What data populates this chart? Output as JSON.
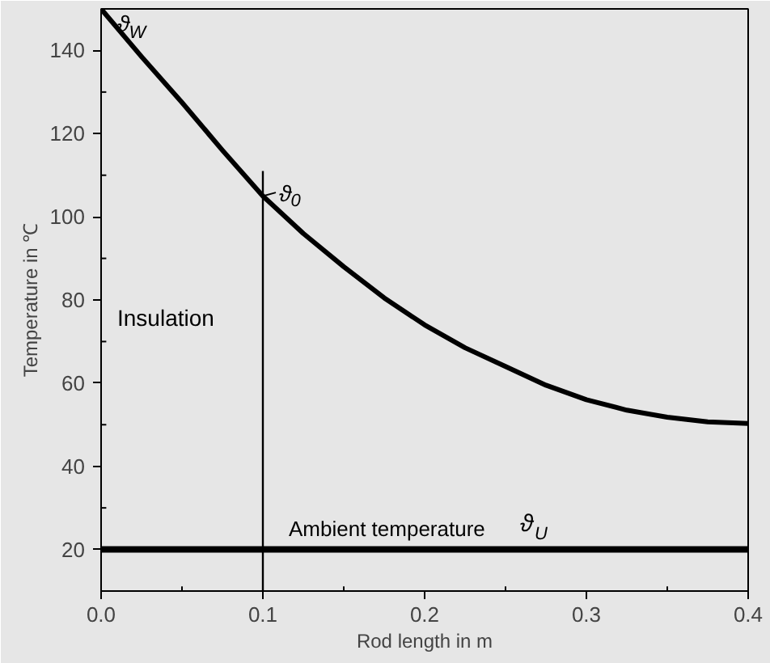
{
  "chart_data": {
    "type": "line",
    "xlabel": "Rod length in m",
    "ylabel": "Temperature in ℃",
    "xlim": [
      0,
      0.4
    ],
    "ylim": [
      10,
      150
    ],
    "xticks": [
      {
        "value": 0,
        "label": "0.0"
      },
      0.1,
      0.2,
      0.3,
      0.4
    ],
    "yticks": [
      20,
      40,
      60,
      80,
      100,
      120,
      140
    ],
    "grid": false,
    "marker": "none",
    "line_style": "solid",
    "series": [
      {
        "color": "#000000",
        "x": [
          0,
          0.025,
          0.05,
          0.075,
          0.1,
          0.125,
          0.15,
          0.175,
          0.2,
          0.225,
          0.25,
          0.275,
          0.3,
          0.325,
          0.35,
          0.375,
          0.4
        ],
        "values": [
          150,
          138.5,
          127.5,
          116,
          105,
          96,
          88,
          80.5,
          74,
          68.5,
          64,
          59.5,
          56,
          53.5,
          51.8,
          50.7,
          50.3
        ]
      },
      {
        "color": "#000000",
        "x": [
          0.1,
          0.1
        ],
        "values": [
          10,
          111
        ]
      }
    ],
    "ref_lines": [
      {
        "axis": "y",
        "value": 20,
        "label": "Ambient temperature   ϑ$_{U}$",
        "color": "#000000"
      }
    ],
    "annotations": [
      {
        "text": "ϑ$_{W}$",
        "x": 0,
        "y": 150
      },
      {
        "text": "ϑ$_{0}$",
        "x": 0.1,
        "y": 105
      },
      "Insulation"
    ]
  }
}
